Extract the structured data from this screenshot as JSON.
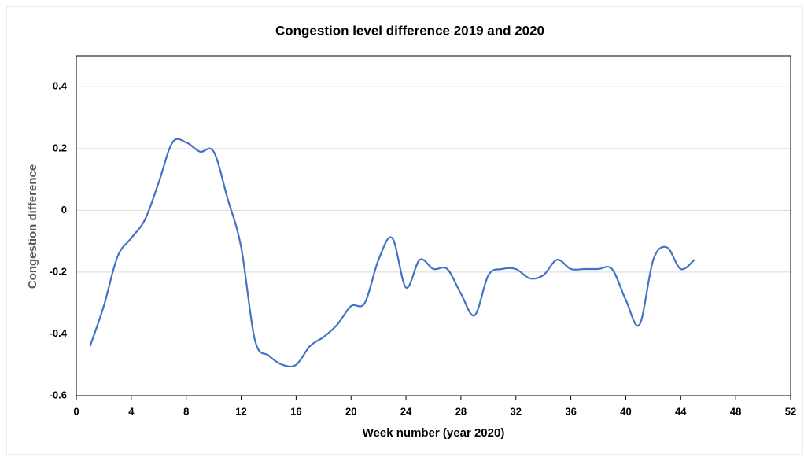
{
  "chart_data": {
    "type": "line",
    "title": "Congestion level difference 2019 and 2020",
    "x_label": "Week number (year 2020)",
    "y_label": "Congestion difference",
    "x": [
      1,
      2,
      3,
      4,
      5,
      6,
      7,
      8,
      9,
      10,
      11,
      12,
      13,
      14,
      15,
      16,
      17,
      18,
      19,
      20,
      21,
      22,
      23,
      24,
      25,
      26,
      27,
      28,
      29,
      30,
      31,
      32,
      33,
      34,
      35,
      36,
      37,
      38,
      39,
      40,
      41,
      42,
      43,
      44,
      45
    ],
    "series": [
      {
        "name": "Congestion difference",
        "color": "#4472c4",
        "values": [
          -0.44,
          -0.31,
          -0.15,
          -0.09,
          -0.03,
          0.09,
          0.22,
          0.22,
          0.19,
          0.19,
          0.04,
          -0.12,
          -0.42,
          -0.47,
          -0.5,
          -0.5,
          -0.44,
          -0.41,
          -0.37,
          -0.31,
          -0.3,
          -0.16,
          -0.09,
          -0.25,
          -0.16,
          -0.19,
          -0.19,
          -0.27,
          -0.34,
          -0.21,
          -0.19,
          -0.19,
          -0.22,
          -0.21,
          -0.16,
          -0.19,
          -0.19,
          -0.19,
          -0.19,
          -0.29,
          -0.37,
          -0.16,
          -0.12,
          -0.19,
          -0.16
        ]
      }
    ],
    "xlim": [
      0,
      52
    ],
    "xticks": [
      0,
      4,
      8,
      12,
      16,
      20,
      24,
      28,
      32,
      36,
      40,
      44,
      48,
      52
    ],
    "ylim": [
      -0.6,
      0.5
    ],
    "yticks": [
      -0.6,
      -0.4,
      -0.2,
      0,
      0.2,
      0.4
    ],
    "grid": true,
    "smooth": true
  }
}
